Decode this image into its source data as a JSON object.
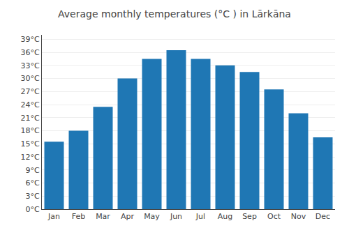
{
  "chart_data": {
    "type": "bar",
    "title": "Average monthly temperatures (°C ) in Lārkāna",
    "categories": [
      "Jan",
      "Feb",
      "Mar",
      "Apr",
      "May",
      "Jun",
      "Jul",
      "Aug",
      "Sep",
      "Oct",
      "Nov",
      "Dec"
    ],
    "values": [
      15.5,
      18.0,
      23.5,
      30.0,
      34.5,
      36.5,
      34.5,
      33.0,
      31.5,
      27.5,
      22.0,
      16.5
    ],
    "ylim": [
      0,
      40
    ],
    "yticks": [
      {
        "value": 0,
        "label": "0°C"
      },
      {
        "value": 3,
        "label": "3°C"
      },
      {
        "value": 6,
        "label": "6°C"
      },
      {
        "value": 9,
        "label": "9°C"
      },
      {
        "value": 12,
        "label": "12°C"
      },
      {
        "value": 15,
        "label": "15°C"
      },
      {
        "value": 18,
        "label": "18°C"
      },
      {
        "value": 21,
        "label": "21°C"
      },
      {
        "value": 24,
        "label": "24°C"
      },
      {
        "value": 27,
        "label": "27°C"
      },
      {
        "value": 30,
        "label": "30°C"
      },
      {
        "value": 33,
        "label": "33°C"
      },
      {
        "value": 36,
        "label": "36°C"
      },
      {
        "value": 39,
        "label": "39°C"
      }
    ],
    "grid": true
  }
}
